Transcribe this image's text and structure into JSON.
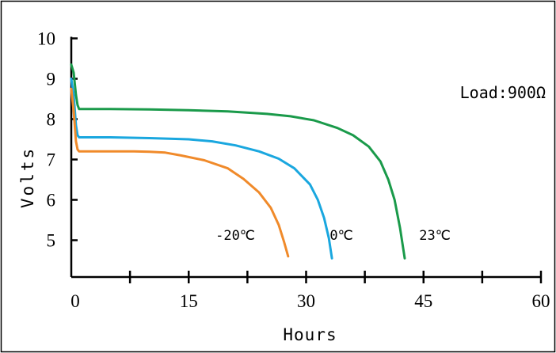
{
  "chart_data": {
    "type": "line",
    "title": "",
    "xlabel": "Hours",
    "ylabel": "Volts",
    "annotation": "Load:900Ω",
    "xlim": [
      0,
      60
    ],
    "ylim": [
      4.2,
      10
    ],
    "x_ticks": [
      0,
      15,
      30,
      45,
      60
    ],
    "x_minor_ticks": [
      7.5,
      22.5,
      37.5,
      52.5
    ],
    "y_ticks": [
      5,
      6,
      7,
      8,
      9,
      10
    ],
    "grid": false,
    "legend": "none",
    "series": [
      {
        "name": "23℃",
        "color": "#1a9a4a",
        "x": [
          0,
          0.3,
          0.6,
          0.8,
          1.0,
          5,
          10,
          15,
          20,
          25,
          28,
          31,
          34,
          36,
          38,
          39.5,
          40.5,
          41.3,
          42,
          42.6
        ],
        "y": [
          9.35,
          9.15,
          8.6,
          8.35,
          8.25,
          8.25,
          8.24,
          8.22,
          8.19,
          8.13,
          8.07,
          7.97,
          7.78,
          7.6,
          7.32,
          6.95,
          6.5,
          6.0,
          5.3,
          4.55
        ]
      },
      {
        "name": "0℃",
        "color": "#1aa7df",
        "x": [
          0,
          0.3,
          0.6,
          0.8,
          1.0,
          5,
          10,
          15,
          18,
          21,
          24,
          26.5,
          28.5,
          30.5,
          31.5,
          32.3,
          32.9,
          33.3
        ],
        "y": [
          9.0,
          8.6,
          7.85,
          7.6,
          7.55,
          7.55,
          7.53,
          7.5,
          7.45,
          7.35,
          7.2,
          7.02,
          6.78,
          6.38,
          6.0,
          5.55,
          5.05,
          4.55
        ]
      },
      {
        "name": "-20℃",
        "color": "#f08a2a",
        "x": [
          0,
          0.3,
          0.6,
          0.8,
          1.0,
          4,
          8,
          10,
          12,
          14,
          17,
          20,
          22,
          24,
          25.5,
          26.5,
          27.2,
          27.7
        ],
        "y": [
          8.75,
          8.2,
          7.45,
          7.25,
          7.2,
          7.2,
          7.2,
          7.19,
          7.17,
          7.1,
          6.98,
          6.78,
          6.52,
          6.18,
          5.8,
          5.38,
          4.95,
          4.6
        ]
      }
    ],
    "curve_labels": [
      {
        "text": "-20℃",
        "series": "-20℃"
      },
      {
        "text": "0℃",
        "series": "0℃"
      },
      {
        "text": "23℃",
        "series": "23℃"
      }
    ]
  }
}
